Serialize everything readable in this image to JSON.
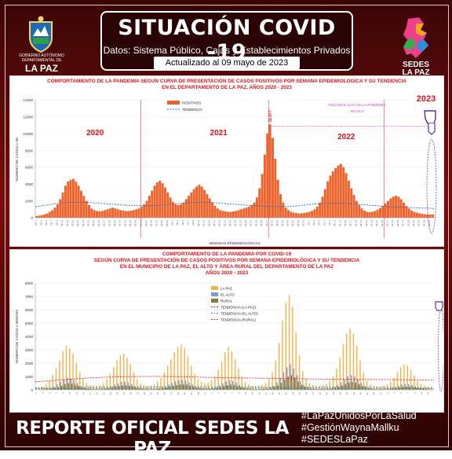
{
  "header": {
    "title": "SITUACIÓN COVID -19",
    "subtitle": "Datos: Sistema Público, Cajas y Establecimientos Privados",
    "updated": "Actualizado   al   09   mayo   de   2023"
  },
  "logos": {
    "left_org": "GOBIERNO AUTÓNOMO DEPARTAMENTAL DE",
    "left_name": "LA PAZ",
    "right_name": "SEDES\nLA PAZ"
  },
  "chart_data": [
    {
      "type": "bar",
      "title_line1": "COMPORTAMIENTO DE LA PANDEMIA SEGUN CURVA DE PRESENTACIÓN DE CASOS POSITIVOS POR SEMANA EPIDEMIOLOGICA Y SU TENDENCIA",
      "title_line2": "EN EL DEPARTAMENTO DE LA PAZ, AÑOS 2020 - 2023",
      "ylabel": "NÚMERO DE CASOS x SE.",
      "xlabel": "SEMANAS EPIDEMIOLOGICAS",
      "ylim": [
        0,
        14000
      ],
      "yticks": [
        "0",
        "2000",
        "4000",
        "6000",
        "8000",
        "10000",
        "12000",
        "14000"
      ],
      "year_labels": [
        "2020",
        "2021",
        "2022",
        "2023"
      ],
      "legend": [
        "POSITIVOS",
        "TENDENCIA"
      ],
      "annotation_line1": "PICO MÁS ALTO DE LA PANDEMIA",
      "annotation_line2": "\"4ta OLA\"",
      "peak_label": "11.077",
      "values": [
        200,
        250,
        300,
        400,
        500,
        700,
        900,
        1200,
        1600,
        2200,
        3000,
        3800,
        4300,
        4500,
        4600,
        4300,
        3800,
        3200,
        2600,
        2000,
        1500,
        1100,
        900,
        800,
        750,
        800,
        900,
        1000,
        1100,
        1200,
        1100,
        1000,
        900,
        850,
        800,
        800,
        850,
        900,
        1000,
        1100,
        1300,
        1600,
        2000,
        2600,
        3200,
        3800,
        4200,
        4400,
        4100,
        3600,
        3000,
        2400,
        1900,
        1600,
        1500,
        1600,
        1800,
        2200,
        2600,
        3000,
        3400,
        3700,
        3900,
        3700,
        3300,
        2800,
        2300,
        1800,
        1400,
        1100,
        900,
        800,
        750,
        700,
        700,
        750,
        800,
        900,
        1000,
        1100,
        1200,
        1300,
        1500,
        1800,
        2400,
        3500,
        5200,
        7500,
        10000,
        11077,
        9500,
        7000,
        4500,
        2800,
        1800,
        1200,
        900,
        700,
        600,
        550,
        500,
        520,
        560,
        620,
        700,
        820,
        1000,
        1300,
        1800,
        2500,
        3400,
        4300,
        5000,
        5500,
        5900,
        6200,
        6400,
        6000,
        5300,
        4400,
        3500,
        2700,
        2000,
        1500,
        1100,
        850,
        700,
        650,
        700,
        800,
        950,
        1150,
        1400,
        1700,
        2000,
        2300,
        2500,
        2600,
        2500,
        2200,
        1800,
        1400,
        1100,
        850,
        700,
        600,
        520,
        460,
        420,
        400,
        390,
        380
      ],
      "trend": [
        1300,
        1500,
        1700,
        1800,
        1850,
        1800,
        1700,
        1600,
        1500,
        1450,
        1400,
        1450,
        1550,
        1700,
        1800,
        1850,
        1800,
        1700,
        1600,
        1500,
        1400,
        1350,
        1300,
        1350,
        1450,
        1600,
        1700,
        1750,
        1700,
        1600,
        1500,
        1400,
        1300,
        1250,
        1200,
        1150,
        1100
      ]
    },
    {
      "type": "bar",
      "title_line1": "COMPORTAMIENTO DE LA PANDEMIA POR COVID-19",
      "title_line2": "SEGÚN CURVA DE PRESENTACIÓN DE CASOS POSITIVOS POR SEMANA EPIDEMIOLÓGICA Y SU TENDENCIA",
      "title_line3": "EN EL  MUNICIPIO DE LA PAZ, EL ALTO Y ÁREA RURAL DEL DEPARTAMENTO DE LA PAZ",
      "title_line4": "AÑOS 2020 - 2023",
      "ylabel": "NÚMERO DE CASOS x SEMANA",
      "ylim": [
        0,
        8000
      ],
      "yticks": [
        "0",
        "1000",
        "2000",
        "3000",
        "4000",
        "5000",
        "6000",
        "7000",
        "8000"
      ],
      "legend": [
        "LA PAZ",
        "EL ALTO",
        "RURAL",
        "TENDENCIA (LA PAZ)",
        "TENDENCIA (EL ALTO)",
        "TENDENCIA (RURAL)"
      ],
      "series": [
        {
          "name": "LA PAZ",
          "values": [
            100,
            150,
            250,
            400,
            700,
            1100,
            1600,
            2200,
            2900,
            3300,
            3100,
            2700,
            2000,
            1300,
            800,
            500,
            350,
            300,
            300,
            350,
            500,
            800,
            1200,
            1700,
            2200,
            2600,
            2700,
            2400,
            1900,
            1300,
            800,
            500,
            350,
            300,
            320,
            400,
            600,
            900,
            1300,
            1800,
            2300,
            2800,
            3200,
            3400,
            3100,
            2500,
            1800,
            1200,
            800,
            600,
            500,
            550,
            700,
            1000,
            1500,
            2100,
            2800,
            3200,
            2900,
            2300,
            1600,
            1000,
            600,
            400,
            300,
            280,
            300,
            380,
            500,
            800,
            1300,
            2200,
            3500,
            5200,
            6500,
            7100,
            6200,
            4300,
            2600,
            1400,
            800,
            500,
            350,
            300,
            300,
            350,
            450,
            650,
            1000,
            1600,
            2400,
            3400,
            4200,
            4600,
            4200,
            3300,
            2200,
            1300,
            700,
            400,
            300,
            250,
            250,
            300,
            400,
            600,
            900,
            1300,
            1700,
            1900,
            1800,
            1500,
            1100,
            700,
            450,
            300,
            220,
            180
          ]
        },
        {
          "name": "EL ALTO",
          "values": [
            20,
            30,
            50,
            80,
            150,
            250,
            400,
            600,
            800,
            900,
            850,
            700,
            500,
            300,
            180,
            110,
            80,
            70,
            70,
            80,
            110,
            170,
            260,
            380,
            500,
            600,
            620,
            550,
            420,
            280,
            170,
            110,
            80,
            70,
            70,
            90,
            130,
            200,
            290,
            400,
            520,
            640,
            720,
            760,
            700,
            560,
            400,
            270,
            180,
            130,
            110,
            120,
            160,
            230,
            340,
            480,
            640,
            730,
            660,
            520,
            360,
            220,
            140,
            90,
            70,
            60,
            70,
            90,
            120,
            190,
            320,
            560,
            900,
            1300,
            1700,
            1900,
            1600,
            1100,
            650,
            350,
            200,
            120,
            80,
            70,
            70,
            80,
            100,
            140,
            220,
            360,
            560,
            800,
            1000,
            1100,
            1000,
            780,
            520,
            300,
            160,
            90,
            70,
            60,
            60,
            70,
            90,
            140,
            210,
            300,
            400,
            450,
            430,
            360,
            260,
            170,
            110,
            70,
            50,
            40
          ]
        },
        {
          "name": "RURAL",
          "values": [
            10,
            15,
            25,
            40,
            70,
            120,
            200,
            300,
            420,
            500,
            470,
            380,
            270,
            160,
            100,
            60,
            45,
            40,
            40,
            45,
            60,
            90,
            140,
            200,
            270,
            330,
            340,
            300,
            230,
            150,
            90,
            60,
            45,
            40,
            40,
            50,
            70,
            110,
            160,
            220,
            290,
            360,
            400,
            420,
            390,
            310,
            220,
            150,
            100,
            70,
            60,
            65,
            85,
            125,
            180,
            260,
            350,
            400,
            360,
            280,
            190,
            120,
            75,
            50,
            40,
            35,
            40,
            50,
            70,
            110,
            180,
            320,
            520,
            760,
            980,
            1100,
            920,
            620,
            370,
            200,
            110,
            65,
            45,
            40,
            40,
            45,
            55,
            80,
            120,
            200,
            310,
            440,
            540,
            590,
            540,
            420,
            280,
            160,
            90,
            50,
            40,
            35,
            35,
            40,
            50,
            75,
            110,
            160,
            210,
            240,
            230,
            190,
            140,
            90,
            60,
            40,
            30,
            25
          ]
        }
      ],
      "trend_lapaz": [
        600,
        700,
        800,
        900,
        950,
        980,
        1000,
        1000,
        980,
        950,
        920,
        900,
        880,
        860,
        840,
        820,
        800,
        790,
        780,
        770,
        760,
        750,
        740
      ],
      "trend_elalto": [
        150,
        170,
        190,
        210,
        220,
        230,
        235,
        240,
        240,
        238,
        235,
        230,
        225,
        220,
        215,
        210,
        205,
        200,
        195,
        190,
        185,
        180,
        175
      ],
      "trend_rural": [
        80,
        90,
        100,
        110,
        115,
        120,
        122,
        124,
        124,
        123,
        122,
        120,
        118,
        116,
        114,
        112,
        110,
        108,
        106,
        104,
        102,
        100,
        98
      ]
    }
  ],
  "footer": {
    "title": "REPORTE OFICIAL SEDES LA PAZ",
    "hashtags": [
      "#LaPazUnidosPorLaSalud",
      "#GestiónWaynaMallku",
      "#SEDESLaPaz"
    ]
  },
  "colors": {
    "accent_red": "#e0121b",
    "bar_orange": "#f0622a",
    "lapaz_yellow": "#f6b24a",
    "elalto_blue": "#7d9bd0",
    "rural_olive": "#8a7a38",
    "annotation_magenta": "#d63bb8",
    "frame_dark": "#5a0808"
  }
}
